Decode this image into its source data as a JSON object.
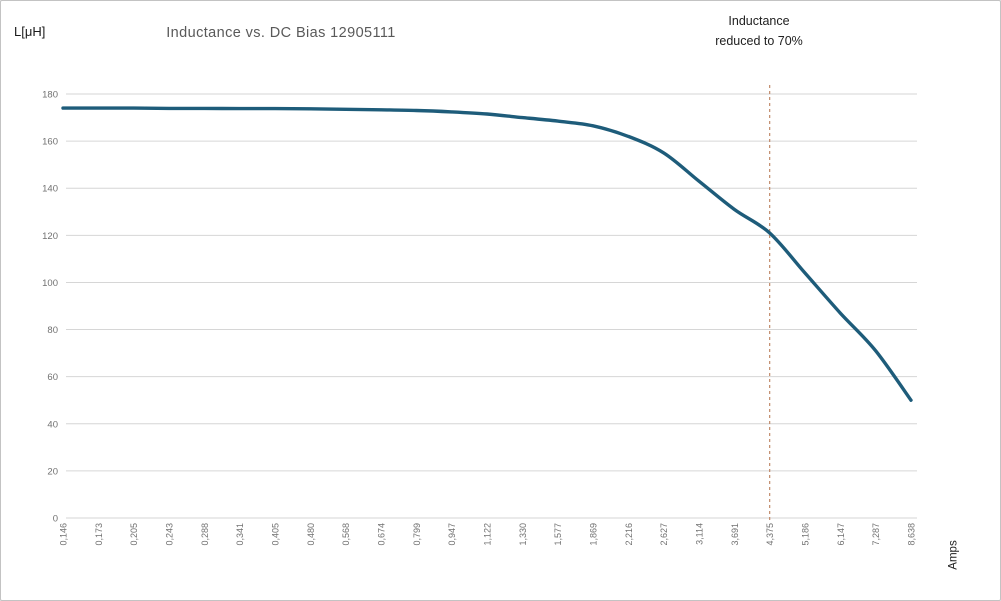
{
  "chart_data": {
    "type": "line",
    "title": "Inductance vs. DC Bias 12905111",
    "ylabel": "L[μH]",
    "xlabel": "Amps",
    "categories": [
      "0,146",
      "0,173",
      "0,205",
      "0,243",
      "0,288",
      "0,341",
      "0,405",
      "0,480",
      "0,568",
      "0,674",
      "0,799",
      "0,947",
      "1,122",
      "1,330",
      "1,577",
      "1,869",
      "2,216",
      "2,627",
      "3,114",
      "3,691",
      "4,375",
      "5,186",
      "6,147",
      "7,287",
      "8,638"
    ],
    "values": [
      174,
      174,
      174,
      173.9,
      173.9,
      173.8,
      173.8,
      173.7,
      173.5,
      173.3,
      173,
      172.4,
      171.5,
      170,
      168.5,
      166.5,
      162,
      155,
      143,
      131,
      121,
      104,
      87,
      71,
      50
    ],
    "ylim": [
      0,
      180
    ],
    "ytick_step": 20,
    "grid": "horizontal",
    "legend": "none",
    "annotation": {
      "line1": "Inductance",
      "line2": "reduced to 70%",
      "vline_category": "4,375"
    },
    "colors": {
      "line": "#1e5c7a",
      "vline": "#c18a6a",
      "grid": "#d6d6d6",
      "title": "#595959",
      "tick": "#717171",
      "text": "#212121"
    }
  }
}
